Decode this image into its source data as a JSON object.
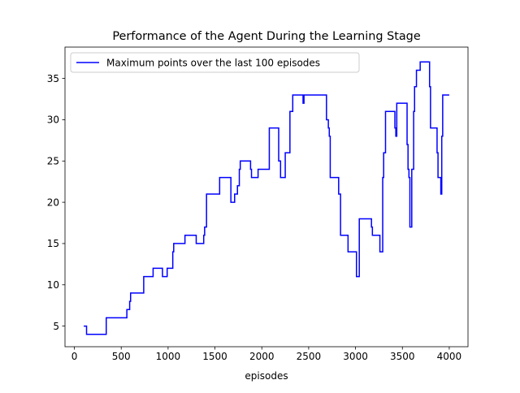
{
  "chart_data": {
    "type": "line",
    "title": "Performance of the Agent During the Learning Stage",
    "xlabel": "episodes",
    "ylabel": "",
    "xlim": [
      -100,
      4200
    ],
    "ylim": [
      2.5,
      38.8
    ],
    "xticks": [
      0,
      500,
      1000,
      1500,
      2000,
      2500,
      3000,
      3500,
      4000
    ],
    "yticks": [
      5,
      10,
      15,
      20,
      25,
      30,
      35
    ],
    "grid": false,
    "legend_position": "top-left",
    "colors": {
      "series": "#0000ff",
      "axes": "#000000",
      "background": "#ffffff"
    },
    "series": [
      {
        "name": "Maximum points over the last 100 episodes",
        "points": [
          [
            100,
            5
          ],
          [
            130,
            5
          ],
          [
            130,
            4
          ],
          [
            340,
            4
          ],
          [
            340,
            6
          ],
          [
            560,
            6
          ],
          [
            560,
            7
          ],
          [
            590,
            7
          ],
          [
            590,
            8
          ],
          [
            600,
            8
          ],
          [
            600,
            9
          ],
          [
            740,
            9
          ],
          [
            740,
            11
          ],
          [
            840,
            11
          ],
          [
            840,
            12
          ],
          [
            940,
            12
          ],
          [
            940,
            11
          ],
          [
            990,
            11
          ],
          [
            990,
            12
          ],
          [
            1050,
            12
          ],
          [
            1050,
            14
          ],
          [
            1060,
            14
          ],
          [
            1060,
            15
          ],
          [
            1180,
            15
          ],
          [
            1180,
            16
          ],
          [
            1300,
            16
          ],
          [
            1300,
            15
          ],
          [
            1380,
            15
          ],
          [
            1380,
            16
          ],
          [
            1390,
            16
          ],
          [
            1390,
            17
          ],
          [
            1410,
            17
          ],
          [
            1410,
            21
          ],
          [
            1550,
            21
          ],
          [
            1550,
            23
          ],
          [
            1670,
            23
          ],
          [
            1670,
            20
          ],
          [
            1710,
            20
          ],
          [
            1710,
            21
          ],
          [
            1740,
            21
          ],
          [
            1740,
            22
          ],
          [
            1760,
            22
          ],
          [
            1760,
            24
          ],
          [
            1770,
            24
          ],
          [
            1770,
            25
          ],
          [
            1880,
            25
          ],
          [
            1880,
            24
          ],
          [
            1890,
            24
          ],
          [
            1890,
            23
          ],
          [
            1960,
            23
          ],
          [
            1960,
            24
          ],
          [
            2080,
            24
          ],
          [
            2080,
            29
          ],
          [
            2180,
            29
          ],
          [
            2180,
            25
          ],
          [
            2200,
            25
          ],
          [
            2200,
            23
          ],
          [
            2250,
            23
          ],
          [
            2250,
            26
          ],
          [
            2300,
            26
          ],
          [
            2300,
            31
          ],
          [
            2330,
            31
          ],
          [
            2330,
            33
          ],
          [
            2440,
            33
          ],
          [
            2440,
            32
          ],
          [
            2450,
            32
          ],
          [
            2450,
            33
          ],
          [
            2690,
            33
          ],
          [
            2690,
            30
          ],
          [
            2710,
            30
          ],
          [
            2710,
            29
          ],
          [
            2720,
            29
          ],
          [
            2720,
            28
          ],
          [
            2730,
            28
          ],
          [
            2730,
            23
          ],
          [
            2820,
            23
          ],
          [
            2820,
            21
          ],
          [
            2840,
            21
          ],
          [
            2840,
            16
          ],
          [
            2920,
            16
          ],
          [
            2920,
            14
          ],
          [
            3010,
            14
          ],
          [
            3010,
            11
          ],
          [
            3040,
            11
          ],
          [
            3040,
            18
          ],
          [
            3170,
            18
          ],
          [
            3170,
            17
          ],
          [
            3180,
            17
          ],
          [
            3180,
            16
          ],
          [
            3260,
            16
          ],
          [
            3260,
            14
          ],
          [
            3290,
            14
          ],
          [
            3290,
            23
          ],
          [
            3300,
            23
          ],
          [
            3300,
            26
          ],
          [
            3320,
            26
          ],
          [
            3320,
            31
          ],
          [
            3420,
            31
          ],
          [
            3420,
            29
          ],
          [
            3430,
            29
          ],
          [
            3430,
            28
          ],
          [
            3440,
            28
          ],
          [
            3440,
            32
          ],
          [
            3550,
            32
          ],
          [
            3550,
            27
          ],
          [
            3560,
            27
          ],
          [
            3560,
            24
          ],
          [
            3570,
            24
          ],
          [
            3570,
            23
          ],
          [
            3580,
            23
          ],
          [
            3580,
            17
          ],
          [
            3600,
            17
          ],
          [
            3600,
            24
          ],
          [
            3620,
            24
          ],
          [
            3620,
            31
          ],
          [
            3630,
            31
          ],
          [
            3630,
            34
          ],
          [
            3650,
            34
          ],
          [
            3650,
            36
          ],
          [
            3690,
            36
          ],
          [
            3690,
            37
          ],
          [
            3790,
            37
          ],
          [
            3790,
            34
          ],
          [
            3800,
            34
          ],
          [
            3800,
            29
          ],
          [
            3870,
            29
          ],
          [
            3870,
            26
          ],
          [
            3880,
            26
          ],
          [
            3880,
            23
          ],
          [
            3910,
            23
          ],
          [
            3910,
            21
          ],
          [
            3920,
            21
          ],
          [
            3920,
            28
          ],
          [
            3930,
            28
          ],
          [
            3930,
            33
          ],
          [
            4000,
            33
          ]
        ]
      }
    ]
  }
}
